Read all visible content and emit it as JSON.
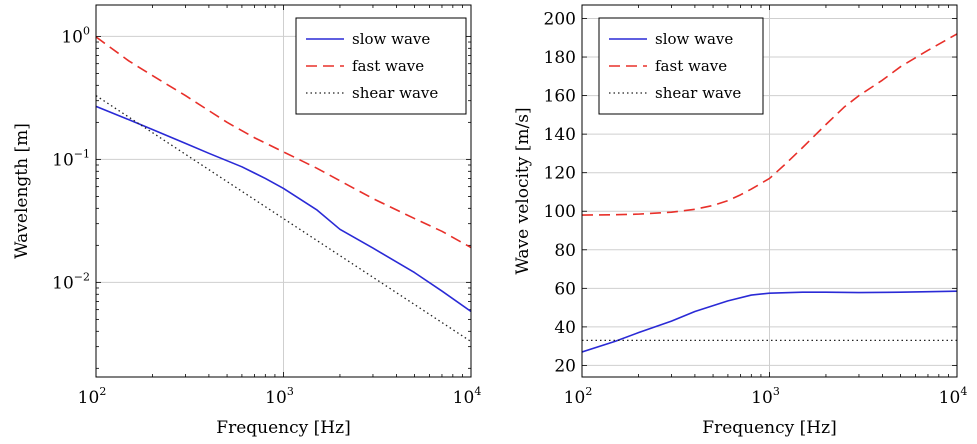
{
  "chart_data": [
    {
      "type": "line",
      "xlabel": "Frequency [Hz]",
      "ylabel": "Wavelength [m]",
      "xscale": "log",
      "yscale": "log",
      "xlim": [
        100,
        10000
      ],
      "ylim": [
        0.0017,
        1.8
      ],
      "grid": true,
      "legend_position": "top-right",
      "x_tick_labels": [
        {
          "value": 100,
          "base": "10",
          "exp": "2"
        },
        {
          "value": 1000,
          "base": "10",
          "exp": "3"
        },
        {
          "value": 10000,
          "base": "10",
          "exp": "4"
        }
      ],
      "y_tick_labels": [
        {
          "value": 0.01,
          "base": "10",
          "exp": "−2"
        },
        {
          "value": 0.1,
          "base": "10",
          "exp": "−1"
        },
        {
          "value": 1,
          "base": "10",
          "exp": "0"
        }
      ],
      "series": [
        {
          "name": "slow wave",
          "color": "#2a2ad6",
          "style": "solid",
          "x": [
            100,
            150,
            200,
            300,
            400,
            600,
            800,
            1000,
            1500,
            2000,
            3000,
            5000,
            7000,
            10000
          ],
          "y": [
            0.27,
            0.21,
            0.175,
            0.135,
            0.112,
            0.087,
            0.07,
            0.058,
            0.039,
            0.027,
            0.019,
            0.012,
            0.0085,
            0.0058
          ]
        },
        {
          "name": "fast wave",
          "color": "#e8302a",
          "style": "dashed",
          "x": [
            100,
            150,
            200,
            300,
            500,
            700,
            1000,
            1500,
            2000,
            3000,
            5000,
            7000,
            10000
          ],
          "y": [
            0.99,
            0.63,
            0.48,
            0.33,
            0.2,
            0.15,
            0.115,
            0.085,
            0.067,
            0.048,
            0.033,
            0.026,
            0.0192
          ]
        },
        {
          "name": "shear wave",
          "color": "#222222",
          "style": "dotted",
          "x": [
            100,
            10000
          ],
          "y": [
            0.33,
            0.0033
          ]
        }
      ]
    },
    {
      "type": "line",
      "xlabel": "Frequency [Hz]",
      "ylabel": "Wave velocity [m/s]",
      "xscale": "log",
      "yscale": "linear",
      "xlim": [
        100,
        10000
      ],
      "ylim": [
        14,
        207
      ],
      "grid": true,
      "legend_position": "top-left",
      "x_tick_labels": [
        {
          "value": 100,
          "base": "10",
          "exp": "2"
        },
        {
          "value": 1000,
          "base": "10",
          "exp": "3"
        },
        {
          "value": 10000,
          "base": "10",
          "exp": "4"
        }
      ],
      "y_tick_labels": [
        {
          "value": 20,
          "text": "20"
        },
        {
          "value": 40,
          "text": "40"
        },
        {
          "value": 60,
          "text": "60"
        },
        {
          "value": 80,
          "text": "80"
        },
        {
          "value": 100,
          "text": "100"
        },
        {
          "value": 120,
          "text": "120"
        },
        {
          "value": 140,
          "text": "140"
        },
        {
          "value": 160,
          "text": "160"
        },
        {
          "value": 180,
          "text": "180"
        },
        {
          "value": 200,
          "text": "200"
        }
      ],
      "series": [
        {
          "name": "slow wave",
          "color": "#2a2ad6",
          "style": "solid",
          "x": [
            100,
            150,
            200,
            300,
            400,
            600,
            800,
            1000,
            1500,
            2000,
            3000,
            5000,
            10000
          ],
          "y": [
            27,
            32.5,
            37,
            43,
            48,
            53.5,
            56.5,
            57.5,
            58,
            58,
            57.8,
            58,
            58.5
          ]
        },
        {
          "name": "fast wave",
          "color": "#e8302a",
          "style": "dashed",
          "x": [
            100,
            150,
            200,
            300,
            400,
            500,
            600,
            700,
            800,
            1000,
            1200,
            1500,
            2000,
            2500,
            3000,
            4000,
            5000,
            7000,
            10000
          ],
          "y": [
            98,
            98.2,
            98.5,
            99.5,
            101,
            103,
            105.5,
            108.5,
            111.5,
            117,
            124,
            133,
            145,
            154,
            160,
            168,
            175,
            183.5,
            192
          ]
        },
        {
          "name": "shear wave",
          "color": "#222222",
          "style": "dotted",
          "x": [
            100,
            10000
          ],
          "y": [
            33,
            33
          ]
        }
      ]
    }
  ]
}
